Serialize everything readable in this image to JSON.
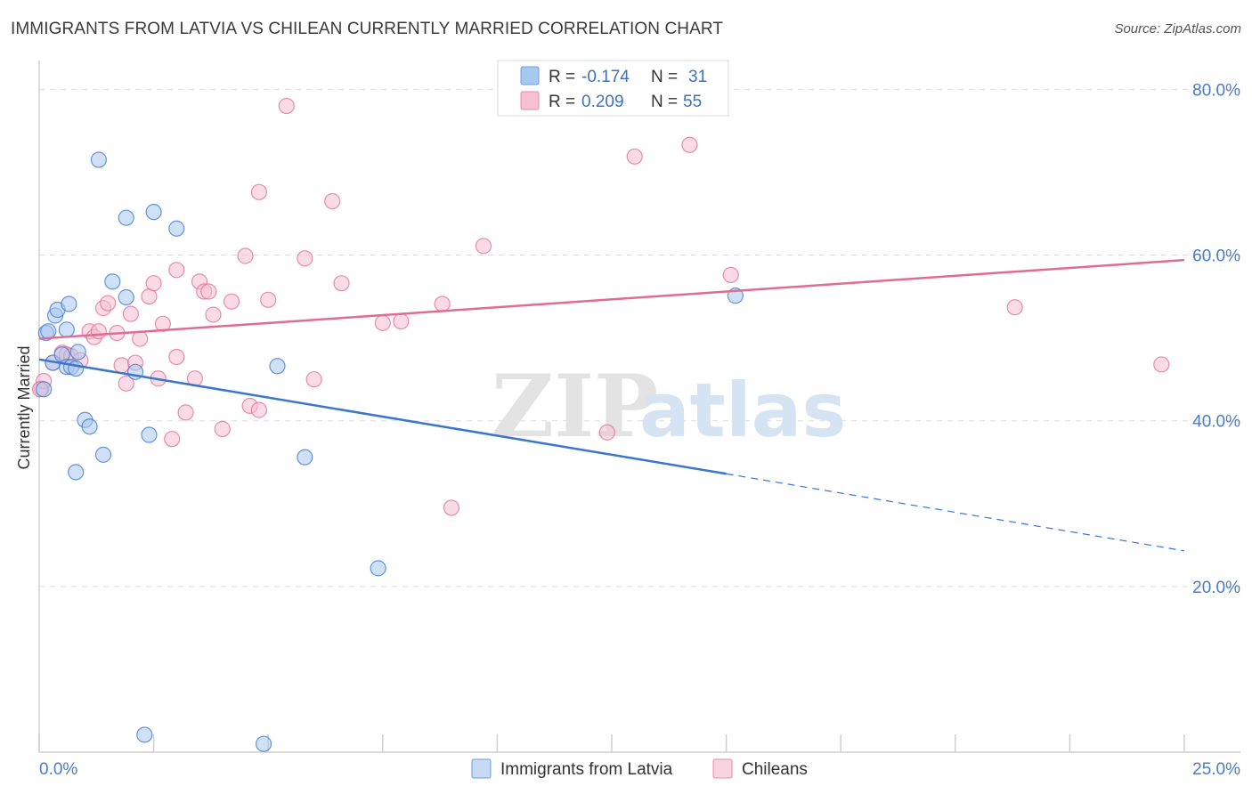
{
  "header": {
    "title": "IMMIGRANTS FROM LATVIA VS CHILEAN CURRENTLY MARRIED CORRELATION CHART",
    "source": "Source: ZipAtlas.com"
  },
  "watermark": {
    "zip": "ZIP",
    "atlas": "atlas"
  },
  "legend": {
    "rows": [
      {
        "r_label": "R =",
        "r_value": "-0.174",
        "n_label": "N =",
        "n_value": "31",
        "color": "#a9c8f0",
        "stroke": "#6f9fdc"
      },
      {
        "r_label": "R =",
        "r_value": "0.209",
        "n_label": "N =",
        "n_value": "55",
        "color": "#f7bfd2",
        "stroke": "#e88aab"
      }
    ]
  },
  "bottom_legend": [
    {
      "label": "Immigrants from Latvia",
      "color": "#c5daf5",
      "stroke": "#6f9fdc"
    },
    {
      "label": "Chileans",
      "color": "#fad3e0",
      "stroke": "#e88aab"
    }
  ],
  "chart_data": {
    "type": "scatter",
    "ylabel": "Currently Married",
    "xlabel": "",
    "xlim": [
      0,
      25
    ],
    "ylim": [
      0,
      80
    ],
    "x_tick_labels": [
      "0.0%",
      "25.0%"
    ],
    "y_ticks": [
      {
        "value": 20,
        "label": "20.0%"
      },
      {
        "value": 40,
        "label": "40.0%"
      },
      {
        "value": 60,
        "label": "60.0%"
      },
      {
        "value": 80,
        "label": "80.0%"
      }
    ],
    "grid": true,
    "colors": {
      "latvia": "#3a76d0",
      "chileans": "#e06b95",
      "latvia_fill": "#a9c8f0",
      "chileans_fill": "#f7bfd2"
    },
    "series": [
      {
        "name": "Immigrants from Latvia",
        "points": [
          [
            0.1,
            43.8
          ],
          [
            0.15,
            50.6
          ],
          [
            0.2,
            50.8
          ],
          [
            0.3,
            47.0
          ],
          [
            0.35,
            52.7
          ],
          [
            0.4,
            53.4
          ],
          [
            0.5,
            48.0
          ],
          [
            0.6,
            46.5
          ],
          [
            0.6,
            51.0
          ],
          [
            0.65,
            54.1
          ],
          [
            0.7,
            46.5
          ],
          [
            0.8,
            46.3
          ],
          [
            0.8,
            33.8
          ],
          [
            0.85,
            48.3
          ],
          [
            1.0,
            40.1
          ],
          [
            1.1,
            39.3
          ],
          [
            1.3,
            71.5
          ],
          [
            1.4,
            35.9
          ],
          [
            1.6,
            56.8
          ],
          [
            1.9,
            64.5
          ],
          [
            1.9,
            54.9
          ],
          [
            2.1,
            45.9
          ],
          [
            2.3,
            2.1
          ],
          [
            2.4,
            38.3
          ],
          [
            2.5,
            65.2
          ],
          [
            3.0,
            63.2
          ],
          [
            4.9,
            1.0
          ],
          [
            5.2,
            46.6
          ],
          [
            5.8,
            35.6
          ],
          [
            7.4,
            22.2
          ],
          [
            15.2,
            55.1
          ]
        ],
        "trend": {
          "x0": 0,
          "y0": 47.4,
          "x1": 15.0,
          "y1": 33.6,
          "dash_x1": 25,
          "dash_y1": 24.3
        }
      },
      {
        "name": "Chileans",
        "points": [
          [
            0.05,
            43.9
          ],
          [
            0.1,
            44.8
          ],
          [
            0.3,
            47.0
          ],
          [
            0.5,
            48.2
          ],
          [
            0.6,
            48.0
          ],
          [
            0.7,
            47.8
          ],
          [
            0.9,
            47.3
          ],
          [
            1.1,
            50.8
          ],
          [
            1.2,
            50.1
          ],
          [
            1.3,
            50.8
          ],
          [
            1.4,
            53.6
          ],
          [
            1.5,
            54.2
          ],
          [
            1.7,
            50.6
          ],
          [
            1.8,
            46.7
          ],
          [
            1.9,
            44.5
          ],
          [
            2.0,
            52.9
          ],
          [
            2.1,
            47.0
          ],
          [
            2.2,
            49.9
          ],
          [
            2.4,
            55.0
          ],
          [
            2.5,
            56.6
          ],
          [
            2.6,
            45.1
          ],
          [
            2.7,
            51.7
          ],
          [
            2.9,
            37.8
          ],
          [
            3.0,
            47.7
          ],
          [
            3.0,
            58.2
          ],
          [
            3.2,
            41.0
          ],
          [
            3.4,
            45.1
          ],
          [
            3.5,
            56.8
          ],
          [
            3.6,
            55.6
          ],
          [
            3.7,
            55.6
          ],
          [
            3.8,
            52.8
          ],
          [
            4.0,
            39.0
          ],
          [
            4.2,
            54.4
          ],
          [
            4.5,
            59.9
          ],
          [
            4.6,
            41.8
          ],
          [
            4.8,
            41.3
          ],
          [
            4.8,
            67.6
          ],
          [
            5.0,
            54.6
          ],
          [
            5.4,
            78.0
          ],
          [
            5.8,
            59.6
          ],
          [
            6.0,
            45.0
          ],
          [
            6.4,
            66.5
          ],
          [
            6.6,
            56.6
          ],
          [
            7.5,
            51.8
          ],
          [
            7.9,
            52.0
          ],
          [
            8.8,
            54.1
          ],
          [
            9.0,
            29.5
          ],
          [
            9.7,
            61.1
          ],
          [
            12.4,
            38.6
          ],
          [
            13.0,
            71.9
          ],
          [
            14.2,
            73.3
          ],
          [
            15.1,
            57.6
          ],
          [
            21.3,
            53.7
          ],
          [
            24.5,
            46.8
          ],
          [
            0.02,
            43.8
          ]
        ],
        "trend": {
          "x0": 0,
          "y0": 49.9,
          "x1": 25,
          "y1": 59.4
        }
      }
    ]
  }
}
